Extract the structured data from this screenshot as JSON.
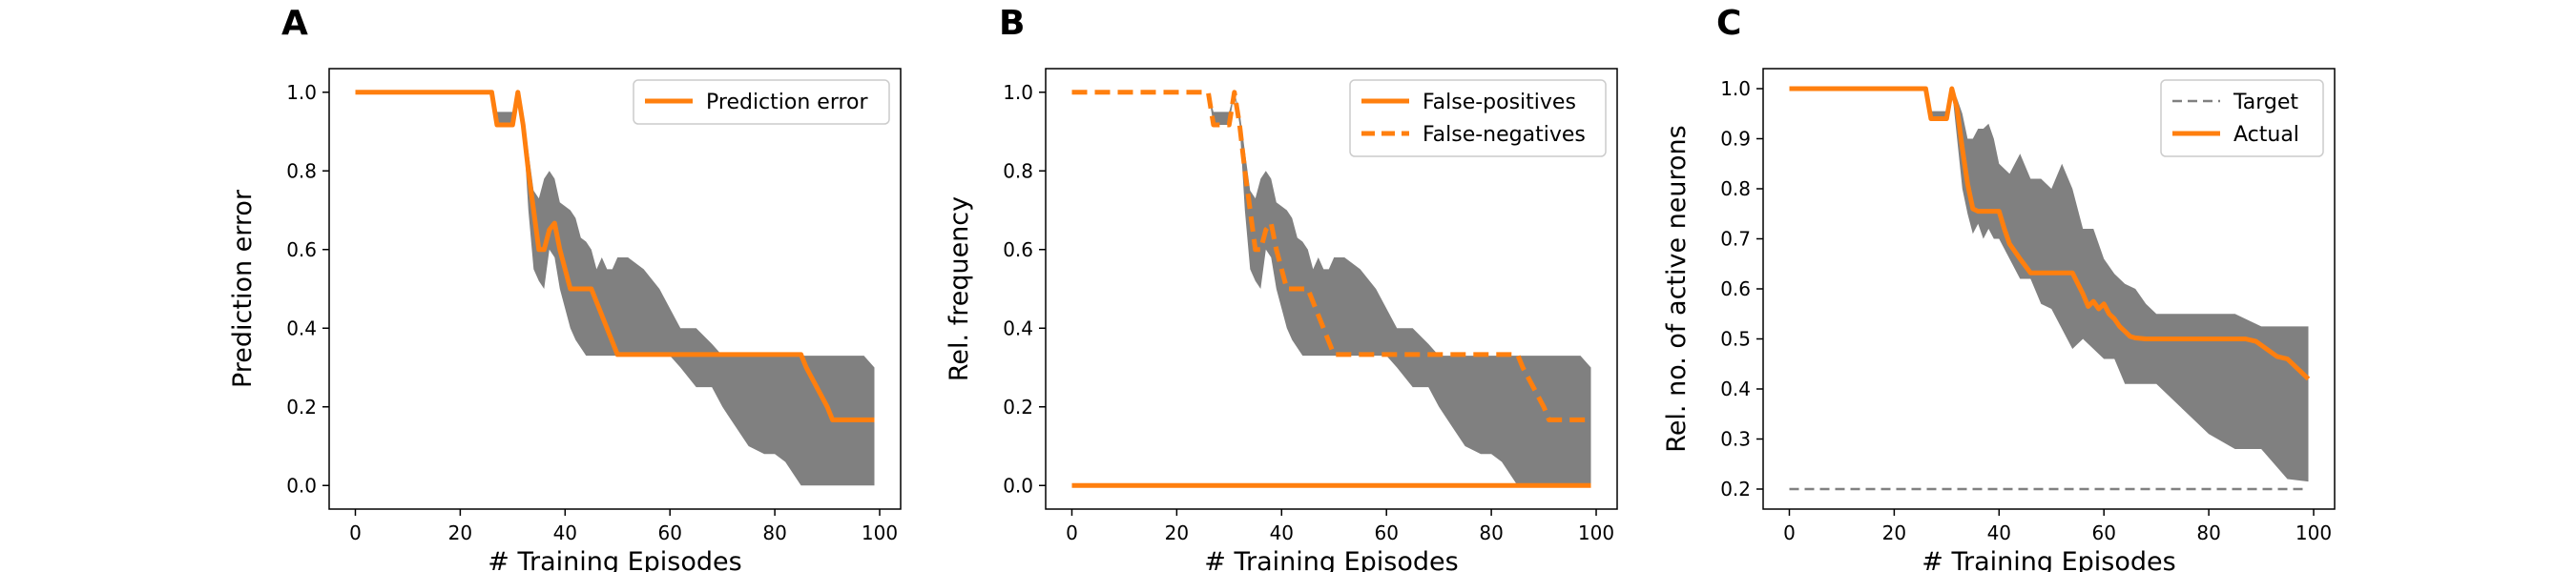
{
  "chart_data": [
    {
      "type": "line",
      "panel": "A",
      "xlabel": "# Training Episodes",
      "ylabel": "Prediction error",
      "xlim": [
        -5,
        104
      ],
      "ylim": [
        -0.06,
        1.06
      ],
      "xticks": [
        0,
        20,
        40,
        60,
        80,
        100
      ],
      "yticks": [
        0.0,
        0.2,
        0.4,
        0.6,
        0.8,
        1.0
      ],
      "grid": false,
      "legend_placement": "top-right",
      "series": [
        {
          "name": "Prediction error",
          "style": "solid",
          "color": "#ff7f0e",
          "x": [
            0,
            26,
            27,
            30,
            31,
            32,
            33,
            34,
            35,
            36,
            37,
            38,
            39,
            40,
            41,
            42,
            43,
            44,
            45,
            50,
            51,
            85,
            86,
            90,
            91,
            99
          ],
          "y": [
            1.0,
            1.0,
            0.917,
            0.917,
            1.0,
            0.917,
            0.8,
            0.7,
            0.6,
            0.6,
            0.65,
            0.667,
            0.6,
            0.55,
            0.5,
            0.5,
            0.5,
            0.5,
            0.5,
            0.333,
            0.333,
            0.333,
            0.3,
            0.2,
            0.167,
            0.167
          ]
        }
      ],
      "band": {
        "color": "#808080",
        "x": [
          0,
          26,
          27,
          30,
          31,
          32,
          33,
          34,
          35,
          36,
          37,
          38,
          39,
          40,
          41,
          42,
          43,
          44,
          45,
          46,
          47,
          48,
          49,
          50,
          52,
          55,
          58,
          60,
          62,
          65,
          68,
          70,
          72,
          75,
          78,
          80,
          82,
          85,
          88,
          90,
          92,
          95,
          97,
          99
        ],
        "upper": [
          1.0,
          1.0,
          0.95,
          0.95,
          1.0,
          0.95,
          0.85,
          0.75,
          0.73,
          0.78,
          0.8,
          0.78,
          0.72,
          0.71,
          0.7,
          0.68,
          0.63,
          0.62,
          0.6,
          0.55,
          0.58,
          0.55,
          0.55,
          0.58,
          0.58,
          0.55,
          0.5,
          0.45,
          0.4,
          0.4,
          0.36,
          0.33,
          0.33,
          0.33,
          0.33,
          0.33,
          0.33,
          0.33,
          0.33,
          0.33,
          0.33,
          0.33,
          0.33,
          0.3
        ],
        "lower": [
          1.0,
          1.0,
          0.917,
          0.917,
          1.0,
          0.917,
          0.7,
          0.55,
          0.52,
          0.5,
          0.6,
          0.58,
          0.5,
          0.45,
          0.4,
          0.37,
          0.35,
          0.33,
          0.33,
          0.33,
          0.33,
          0.33,
          0.33,
          0.33,
          0.33,
          0.33,
          0.33,
          0.33,
          0.3,
          0.25,
          0.25,
          0.2,
          0.16,
          0.1,
          0.08,
          0.08,
          0.06,
          0.0,
          0.0,
          0.0,
          0.0,
          0.0,
          0.0,
          0.0
        ]
      }
    },
    {
      "type": "line",
      "panel": "B",
      "xlabel": "# Training Episodes",
      "ylabel": "Rel. frequency",
      "xlim": [
        -5,
        104
      ],
      "ylim": [
        -0.06,
        1.06
      ],
      "xticks": [
        0,
        20,
        40,
        60,
        80,
        100
      ],
      "yticks": [
        0.0,
        0.2,
        0.4,
        0.6,
        0.8,
        1.0
      ],
      "grid": false,
      "legend_placement": "top-right",
      "series": [
        {
          "name": "False-positives",
          "style": "solid",
          "color": "#ff7f0e",
          "x": [
            0,
            99
          ],
          "y": [
            0.0,
            0.0
          ]
        },
        {
          "name": "False-negatives",
          "style": "dashed",
          "color": "#ff7f0e",
          "x": [
            0,
            26,
            27,
            30,
            31,
            32,
            33,
            34,
            35,
            36,
            37,
            38,
            39,
            40,
            41,
            42,
            43,
            44,
            45,
            50,
            51,
            85,
            86,
            90,
            91,
            99
          ],
          "y": [
            1.0,
            1.0,
            0.917,
            0.917,
            1.0,
            0.917,
            0.8,
            0.7,
            0.6,
            0.6,
            0.65,
            0.667,
            0.6,
            0.55,
            0.5,
            0.5,
            0.5,
            0.5,
            0.5,
            0.333,
            0.333,
            0.333,
            0.3,
            0.2,
            0.167,
            0.167
          ]
        }
      ],
      "band": {
        "color": "#808080",
        "x": [
          0,
          26,
          27,
          30,
          31,
          32,
          33,
          34,
          35,
          36,
          37,
          38,
          39,
          40,
          41,
          42,
          43,
          44,
          45,
          46,
          47,
          48,
          49,
          50,
          52,
          55,
          58,
          60,
          62,
          65,
          68,
          70,
          72,
          75,
          78,
          80,
          82,
          85,
          88,
          90,
          92,
          95,
          97,
          99
        ],
        "upper": [
          1.0,
          1.0,
          0.95,
          0.95,
          1.0,
          0.95,
          0.85,
          0.75,
          0.73,
          0.78,
          0.8,
          0.78,
          0.72,
          0.71,
          0.7,
          0.68,
          0.63,
          0.62,
          0.6,
          0.55,
          0.58,
          0.55,
          0.55,
          0.58,
          0.58,
          0.55,
          0.5,
          0.45,
          0.4,
          0.4,
          0.36,
          0.33,
          0.33,
          0.33,
          0.33,
          0.33,
          0.33,
          0.33,
          0.33,
          0.33,
          0.33,
          0.33,
          0.33,
          0.3
        ],
        "lower": [
          1.0,
          1.0,
          0.917,
          0.917,
          1.0,
          0.917,
          0.7,
          0.55,
          0.52,
          0.5,
          0.6,
          0.58,
          0.5,
          0.45,
          0.4,
          0.37,
          0.35,
          0.33,
          0.33,
          0.33,
          0.33,
          0.33,
          0.33,
          0.33,
          0.33,
          0.33,
          0.33,
          0.33,
          0.3,
          0.25,
          0.25,
          0.2,
          0.16,
          0.1,
          0.08,
          0.08,
          0.06,
          0.0,
          0.0,
          0.0,
          0.0,
          0.0,
          0.0,
          0.0
        ]
      }
    },
    {
      "type": "line",
      "panel": "C",
      "xlabel": "# Training Episodes",
      "ylabel": "Rel. no. of active neurons",
      "xlim": [
        -5,
        104
      ],
      "ylim": [
        0.16,
        1.04
      ],
      "xticks": [
        0,
        20,
        40,
        60,
        80,
        100
      ],
      "yticks": [
        0.2,
        0.3,
        0.4,
        0.5,
        0.6,
        0.7,
        0.8,
        0.9,
        1.0
      ],
      "grid": false,
      "legend_placement": "top-right",
      "series": [
        {
          "name": "Target",
          "style": "dashed",
          "color": "#808080",
          "x": [
            0,
            99
          ],
          "y": [
            0.2,
            0.2
          ]
        },
        {
          "name": "Actual",
          "style": "solid",
          "color": "#ff7f0e",
          "x": [
            0,
            26,
            27,
            30,
            31,
            32,
            33,
            34,
            35,
            36,
            38,
            40,
            41,
            42,
            44,
            46,
            48,
            50,
            52,
            54,
            56,
            57,
            58,
            59,
            60,
            61,
            62,
            63,
            64,
            65,
            66,
            68,
            70,
            75,
            80,
            85,
            87,
            89,
            91,
            93,
            95,
            97,
            99
          ],
          "y": [
            1.0,
            1.0,
            0.94,
            0.94,
            1.0,
            0.96,
            0.88,
            0.81,
            0.76,
            0.755,
            0.755,
            0.755,
            0.72,
            0.69,
            0.66,
            0.632,
            0.632,
            0.632,
            0.632,
            0.632,
            0.59,
            0.565,
            0.575,
            0.56,
            0.57,
            0.55,
            0.54,
            0.525,
            0.515,
            0.505,
            0.502,
            0.5,
            0.5,
            0.5,
            0.5,
            0.5,
            0.5,
            0.495,
            0.48,
            0.465,
            0.46,
            0.44,
            0.42
          ]
        }
      ],
      "band": {
        "color": "#808080",
        "x": [
          0,
          26,
          27,
          30,
          31,
          32,
          33,
          34,
          35,
          36,
          37,
          38,
          39,
          40,
          42,
          44,
          46,
          48,
          50,
          52,
          54,
          56,
          58,
          60,
          62,
          64,
          66,
          68,
          70,
          75,
          80,
          85,
          90,
          95,
          99
        ],
        "upper": [
          1.0,
          1.0,
          0.955,
          0.955,
          1.0,
          0.98,
          0.95,
          0.9,
          0.9,
          0.92,
          0.92,
          0.93,
          0.9,
          0.85,
          0.83,
          0.87,
          0.82,
          0.82,
          0.8,
          0.85,
          0.8,
          0.72,
          0.72,
          0.66,
          0.63,
          0.61,
          0.6,
          0.57,
          0.55,
          0.55,
          0.55,
          0.55,
          0.525,
          0.525,
          0.525
        ],
        "lower": [
          1.0,
          1.0,
          0.94,
          0.94,
          1.0,
          0.9,
          0.8,
          0.75,
          0.71,
          0.73,
          0.7,
          0.72,
          0.7,
          0.7,
          0.66,
          0.62,
          0.62,
          0.57,
          0.56,
          0.52,
          0.48,
          0.5,
          0.48,
          0.46,
          0.46,
          0.41,
          0.41,
          0.41,
          0.41,
          0.36,
          0.31,
          0.28,
          0.28,
          0.22,
          0.215
        ]
      }
    }
  ]
}
